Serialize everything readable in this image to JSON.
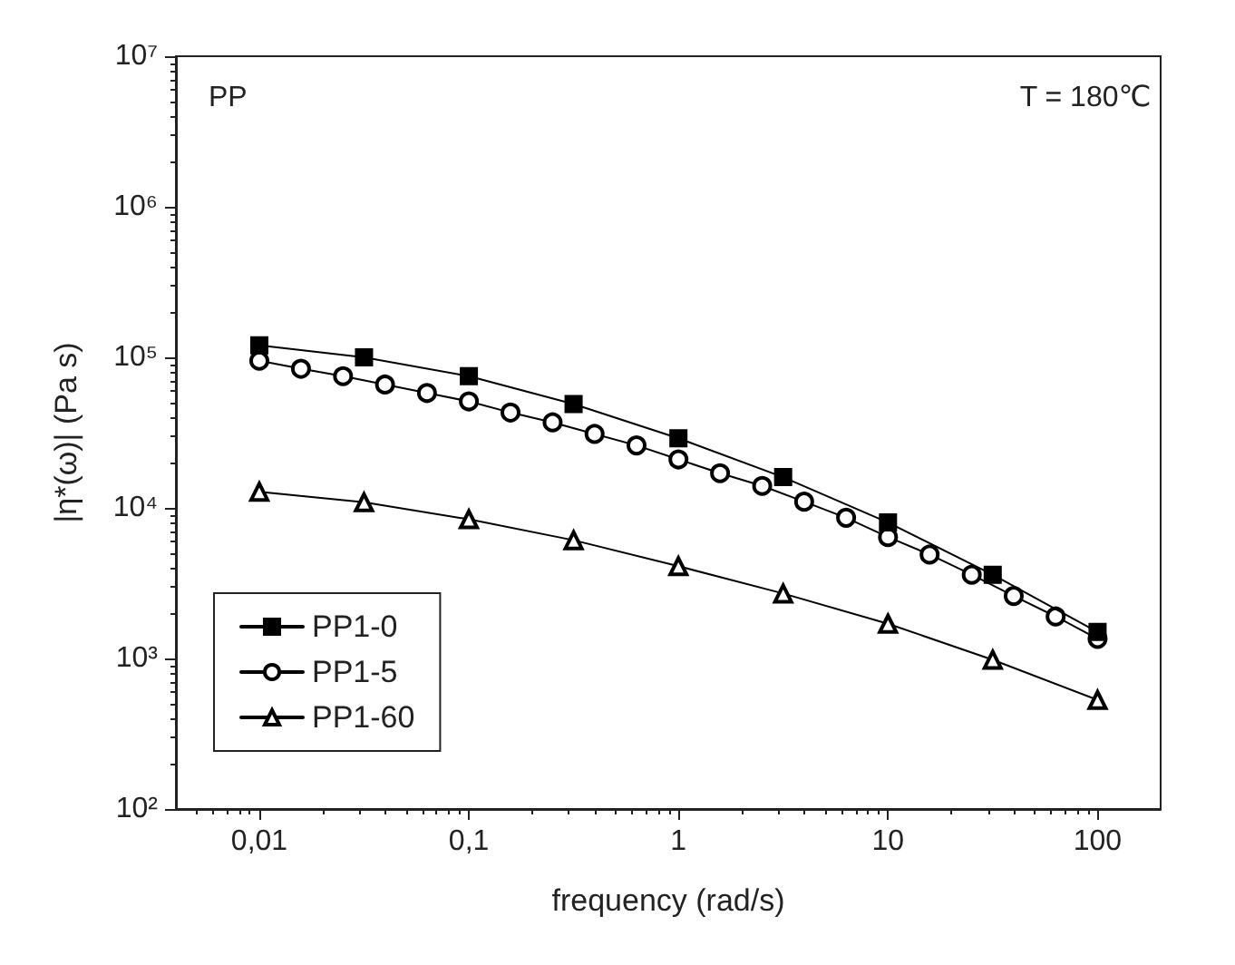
{
  "chart_data": {
    "type": "line",
    "xlabel": "frequency (rad/s)",
    "ylabel": "|η*(ω)| (Pa s)",
    "annotations": [
      "PP",
      "T = 180℃"
    ],
    "log": "xy",
    "grid": false,
    "legend": "bottom left",
    "xlim": [
      0.004,
      200
    ],
    "xticks": [
      {
        "value": 0.01,
        "label": "0,01"
      },
      {
        "value": 0.1,
        "label": "0,1"
      },
      1,
      10,
      100
    ],
    "ylim": [
      100,
      10000000
    ],
    "yticks": [
      {
        "value": 100,
        "label": "10²"
      },
      {
        "value": 1000,
        "label": "10³"
      },
      {
        "value": 10000,
        "label": "10⁴"
      },
      {
        "value": 100000,
        "label": "10⁵"
      },
      {
        "value": 1000000,
        "label": "10⁶"
      },
      {
        "value": 10000000,
        "label": "10⁷"
      }
    ],
    "line_style": "solid",
    "series": [
      {
        "name": "PP1-0",
        "color": "#000000",
        "marker": "square",
        "x": [
          0.01,
          0.0316,
          0.1,
          0.316,
          1,
          3.16,
          10,
          31.6,
          100
        ],
        "values": [
          120000,
          100000,
          75000,
          49000,
          29000,
          16000,
          8000,
          3600,
          1500
        ]
      },
      {
        "name": "PP1-5",
        "color": "#000000",
        "marker": "circle",
        "x": [
          0.01,
          0.0158,
          0.0251,
          0.0398,
          0.0631,
          0.1,
          0.158,
          0.251,
          0.398,
          0.631,
          1,
          1.58,
          2.51,
          3.98,
          6.31,
          10,
          15.8,
          25.1,
          39.8,
          63.1,
          100
        ],
        "values": [
          95000,
          84000,
          75000,
          66000,
          58000,
          51000,
          43000,
          37000,
          31000,
          26000,
          21000,
          17000,
          14000,
          11000,
          8600,
          6400,
          4900,
          3600,
          2600,
          1900,
          1350
        ]
      },
      {
        "name": "PP1-60",
        "color": "#000000",
        "marker": "triangle",
        "x": [
          0.01,
          0.0316,
          0.1,
          0.316,
          1,
          3.16,
          10,
          31.6,
          100
        ],
        "values": [
          12800,
          10900,
          8400,
          6100,
          4100,
          2700,
          1700,
          980,
          530
        ]
      }
    ]
  }
}
